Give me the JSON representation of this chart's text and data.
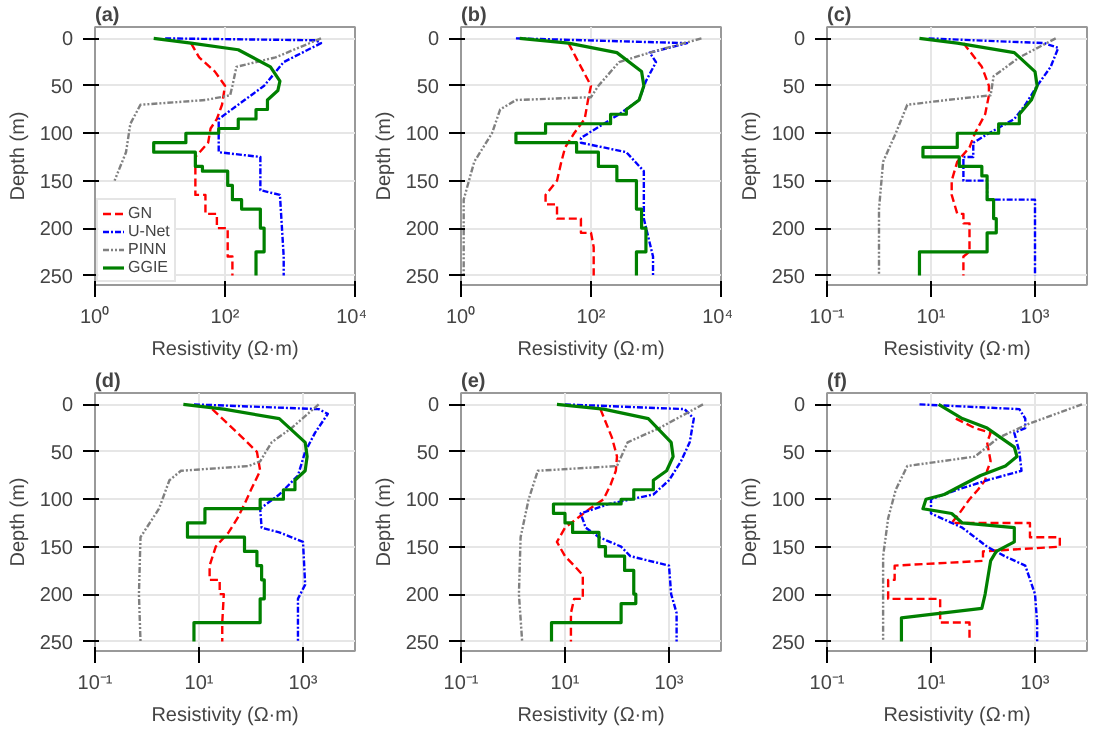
{
  "chart_data": [
    {
      "type": "line",
      "title": "(a)",
      "xlabel": "Resistivity (Ω·m)",
      "ylabel": "Depth (m)",
      "log": "x",
      "xlim": [
        1,
        10000
      ],
      "xticks": [
        {
          "value": 1,
          "label": "10⁰"
        },
        {
          "value": 100,
          "label": "10²"
        },
        {
          "value": 10000,
          "label": "10⁴"
        }
      ],
      "ylim": [
        260,
        -12
      ],
      "yticks": [
        0,
        50,
        100,
        150,
        200,
        250
      ],
      "grid": true,
      "legend": "bottom left",
      "series": [
        {
          "name": "GN",
          "color": "#ff0000",
          "line_style": "dashed",
          "x": [
            30,
            40,
            70,
            100,
            90,
            75,
            60,
            55,
            35,
            35,
            50,
            50,
            75,
            75,
            110,
            110,
            130,
            130
          ],
          "values": [
            5,
            20,
            35,
            50,
            70,
            85,
            95,
            110,
            125,
            165,
            165,
            185,
            185,
            200,
            200,
            230,
            230,
            250
          ]
        },
        {
          "name": "U-Net",
          "color": "#0000ff",
          "line_style": "dashdot",
          "x": [
            12,
            2500,
            3000,
            800,
            400,
            200,
            80,
            80,
            350,
            350,
            700,
            800,
            800
          ],
          "values": [
            0,
            2,
            5,
            25,
            50,
            65,
            85,
            120,
            125,
            160,
            165,
            230,
            250
          ]
        },
        {
          "name": "PINN",
          "color": "#808080",
          "line_style": "dashdotdot",
          "x": [
            3000,
            600,
            150,
            130,
            120,
            50,
            5,
            3.5,
            3,
            2
          ],
          "values": [
            0,
            20,
            30,
            50,
            60,
            65,
            70,
            90,
            120,
            150
          ]
        },
        {
          "name": "GGIE",
          "color": "#008000",
          "line_style": "solid",
          "x": [
            8,
            30,
            160,
            500,
            700,
            650,
            450,
            450,
            300,
            300,
            160,
            160,
            80,
            80,
            25,
            25,
            8,
            8,
            35,
            35,
            45,
            45,
            110,
            110,
            130,
            130,
            180,
            180,
            350,
            350,
            400,
            400,
            300,
            300
          ],
          "values": [
            0,
            5,
            12,
            30,
            45,
            55,
            65,
            75,
            75,
            85,
            85,
            95,
            95,
            100,
            100,
            110,
            110,
            120,
            120,
            135,
            135,
            140,
            140,
            155,
            155,
            170,
            170,
            180,
            180,
            200,
            200,
            225,
            225,
            250
          ]
        }
      ]
    },
    {
      "type": "line",
      "title": "(b)",
      "xlabel": "Resistivity (Ω·m)",
      "ylabel": "Depth (m)",
      "log": "x",
      "xlim": [
        1,
        10000
      ],
      "xticks": [
        {
          "value": 1,
          "label": "10⁰"
        },
        {
          "value": 100,
          "label": "10²"
        },
        {
          "value": 10000,
          "label": "10⁴"
        }
      ],
      "ylim": [
        260,
        -12
      ],
      "yticks": [
        0,
        50,
        100,
        150,
        200,
        250
      ],
      "grid": true,
      "series": [
        {
          "color": "#ff0000",
          "line_style": "dashed",
          "x": [
            45,
            70,
            100,
            90,
            80,
            55,
            40,
            35,
            30,
            20,
            20,
            30,
            30,
            70,
            70,
            100,
            110,
            110
          ],
          "values": [
            5,
            30,
            50,
            65,
            85,
            100,
            115,
            130,
            150,
            165,
            175,
            175,
            190,
            190,
            205,
            205,
            220,
            250
          ]
        },
        {
          "color": "#0000ff",
          "line_style": "dashdot",
          "x": [
            7,
            3000,
            800,
            1000,
            700,
            550,
            270,
            120,
            70,
            70,
            350,
            650,
            650,
            900,
            900
          ],
          "values": [
            0,
            5,
            15,
            25,
            45,
            65,
            80,
            95,
            105,
            110,
            120,
            140,
            190,
            230,
            250
          ]
        },
        {
          "color": "#808080",
          "line_style": "dashdotdot",
          "x": [
            5000,
            800,
            270,
            130,
            100,
            7,
            4,
            3,
            1.6,
            1.1,
            1.1
          ],
          "values": [
            0,
            15,
            25,
            50,
            62,
            65,
            75,
            100,
            130,
            170,
            250
          ]
        },
        {
          "color": "#008000",
          "line_style": "solid",
          "x": [
            8,
            45,
            250,
            600,
            650,
            550,
            350,
            350,
            200,
            200,
            20,
            20,
            7,
            7,
            60,
            60,
            130,
            130,
            250,
            250,
            500,
            500,
            600,
            600,
            700,
            700,
            500,
            500
          ],
          "values": [
            0,
            5,
            15,
            35,
            50,
            65,
            75,
            80,
            80,
            90,
            90,
            100,
            100,
            110,
            110,
            120,
            120,
            135,
            135,
            150,
            150,
            180,
            180,
            200,
            200,
            225,
            225,
            250
          ]
        }
      ]
    },
    {
      "type": "line",
      "title": "(c)",
      "xlabel": "Resistivity (Ω·m)",
      "ylabel": "Depth (m)",
      "log": "x",
      "xlim": [
        0.1,
        10000
      ],
      "xticks": [
        {
          "value": 0.1,
          "label": "10⁻¹"
        },
        {
          "value": 10,
          "label": "10¹"
        },
        {
          "value": 1000,
          "label": "10³"
        }
      ],
      "ylim": [
        260,
        -12
      ],
      "yticks": [
        0,
        50,
        100,
        150,
        200,
        250
      ],
      "grid": true,
      "series": [
        {
          "color": "#ff0000",
          "line_style": "dashed",
          "x": [
            42,
            95,
            130,
            130,
            110,
            70,
            55,
            32,
            25,
            25,
            32,
            42,
            42,
            55,
            55,
            42,
            42
          ],
          "values": [
            5,
            30,
            50,
            60,
            80,
            100,
            115,
            130,
            150,
            165,
            185,
            185,
            195,
            195,
            225,
            230,
            250
          ]
        },
        {
          "color": "#0000ff",
          "line_style": "dashdot",
          "x": [
            9,
            1500,
            2800,
            2000,
            1100,
            650,
            400,
            130,
            65,
            65,
            42,
            42,
            120,
            120,
            1000,
            1000
          ],
          "values": [
            0,
            5,
            10,
            30,
            50,
            70,
            85,
            100,
            110,
            125,
            125,
            150,
            150,
            170,
            170,
            250
          ]
        },
        {
          "color": "#808080",
          "line_style": "dashdotdot",
          "x": [
            2500,
            500,
            160,
            140,
            20,
            3.5,
            2.1,
            1.2,
            1,
            1
          ],
          "values": [
            0,
            20,
            40,
            60,
            65,
            70,
            100,
            130,
            180,
            250
          ]
        },
        {
          "color": "#008000",
          "line_style": "solid",
          "x": [
            6,
            32,
            400,
            1000,
            1100,
            850,
            500,
            500,
            200,
            200,
            32,
            32,
            7,
            7,
            35,
            35,
            95,
            95,
            120,
            120,
            160,
            160,
            180,
            180,
            120,
            120,
            6,
            6
          ],
          "values": [
            0,
            5,
            15,
            35,
            50,
            65,
            80,
            90,
            90,
            100,
            100,
            115,
            115,
            125,
            125,
            135,
            135,
            145,
            145,
            170,
            170,
            190,
            190,
            205,
            205,
            225,
            225,
            250
          ]
        }
      ]
    },
    {
      "type": "line",
      "title": "(d)",
      "xlabel": "Resistivity (Ω·m)",
      "ylabel": "Depth (m)",
      "log": "x",
      "xlim": [
        0.1,
        10000
      ],
      "xticks": [
        {
          "value": 0.1,
          "label": "10⁻¹"
        },
        {
          "value": 10,
          "label": "10¹"
        },
        {
          "value": 1000,
          "label": "10³"
        }
      ],
      "ylim": [
        260,
        -12
      ],
      "yticks": [
        0,
        50,
        100,
        150,
        200,
        250
      ],
      "grid": true,
      "series": [
        {
          "color": "#ff0000",
          "line_style": "dashed",
          "x": [
            18,
            55,
            130,
            150,
            100,
            75,
            55,
            37,
            21,
            16,
            16,
            25,
            25,
            30,
            28,
            28
          ],
          "values": [
            5,
            30,
            50,
            70,
            90,
            105,
            120,
            135,
            150,
            170,
            185,
            185,
            200,
            200,
            230,
            250
          ]
        },
        {
          "color": "#0000ff",
          "line_style": "dashdot",
          "x": [
            8,
            2000,
            3000,
            1700,
            1100,
            800,
            350,
            150,
            160,
            350,
            1000,
            1100,
            800,
            800
          ],
          "values": [
            0,
            5,
            10,
            30,
            50,
            75,
            95,
            110,
            130,
            135,
            145,
            190,
            205,
            250
          ]
        },
        {
          "color": "#808080",
          "line_style": "dashdotdot",
          "x": [
            2000,
            600,
            250,
            150,
            90,
            4.5,
            2.7,
            1.7,
            0.75,
            0.7,
            0.75
          ],
          "values": [
            0,
            25,
            40,
            60,
            65,
            70,
            80,
            110,
            140,
            200,
            250
          ]
        },
        {
          "color": "#008000",
          "line_style": "solid",
          "x": [
            5,
            30,
            350,
            1100,
            1200,
            1100,
            700,
            700,
            420,
            420,
            150,
            150,
            13,
            13,
            6,
            6,
            75,
            75,
            130,
            130,
            160,
            160,
            180,
            180,
            150,
            150,
            8,
            8
          ],
          "values": [
            0,
            5,
            15,
            40,
            55,
            70,
            80,
            90,
            90,
            100,
            100,
            110,
            110,
            125,
            125,
            140,
            140,
            155,
            155,
            170,
            170,
            185,
            185,
            205,
            205,
            230,
            230,
            250
          ]
        }
      ]
    },
    {
      "type": "line",
      "title": "(e)",
      "xlabel": "Resistivity (Ω·m)",
      "ylabel": "Depth (m)",
      "log": "x",
      "xlim": [
        0.1,
        10000
      ],
      "xticks": [
        {
          "value": 0.1,
          "label": "10⁻¹"
        },
        {
          "value": 10,
          "label": "10¹"
        },
        {
          "value": 1000,
          "label": "10³"
        }
      ],
      "ylim": [
        260,
        -12
      ],
      "yticks": [
        0,
        50,
        100,
        150,
        200,
        250
      ],
      "grid": true,
      "series": [
        {
          "color": "#ff0000",
          "line_style": "dashed",
          "x": [
            48,
            80,
            100,
            95,
            75,
            55,
            30,
            10,
            7,
            10,
            15,
            22,
            22,
            15,
            13,
            13
          ],
          "values": [
            5,
            35,
            55,
            70,
            85,
            100,
            110,
            130,
            145,
            160,
            170,
            180,
            205,
            205,
            220,
            250
          ]
        },
        {
          "color": "#0000ff",
          "line_style": "dashdot",
          "x": [
            10,
            2000,
            3000,
            2500,
            1700,
            1000,
            500,
            70,
            20,
            25,
            45,
            120,
            180,
            1000,
            1100,
            1400,
            1400
          ],
          "values": [
            0,
            5,
            15,
            40,
            60,
            80,
            95,
            105,
            115,
            130,
            140,
            150,
            160,
            170,
            200,
            220,
            250
          ]
        },
        {
          "color": "#808080",
          "line_style": "dashdotdot",
          "x": [
            4500,
            650,
            160,
            100,
            3,
            2,
            1.4,
            1.3,
            1.5
          ],
          "values": [
            0,
            25,
            40,
            65,
            70,
            100,
            140,
            200,
            250
          ]
        },
        {
          "color": "#008000",
          "line_style": "solid",
          "x": [
            7,
            55,
            400,
            1100,
            1200,
            900,
            500,
            500,
            210,
            210,
            120,
            120,
            6,
            6,
            10,
            10,
            14,
            14,
            45,
            45,
            60,
            60,
            140,
            140,
            210,
            210,
            230,
            230,
            120,
            120,
            5.5,
            5.5
          ],
          "values": [
            0,
            5,
            15,
            40,
            55,
            70,
            80,
            90,
            90,
            100,
            100,
            105,
            105,
            115,
            115,
            125,
            125,
            135,
            135,
            150,
            150,
            160,
            160,
            175,
            175,
            200,
            200,
            210,
            210,
            230,
            230,
            250
          ]
        }
      ]
    },
    {
      "type": "line",
      "title": "(f)",
      "xlabel": "Resistivity (Ω·m)",
      "ylabel": "Depth (m)",
      "log": "x",
      "xlim": [
        0.1,
        10000
      ],
      "xticks": [
        {
          "value": 0.1,
          "label": "10⁻¹"
        },
        {
          "value": 10,
          "label": "10¹"
        },
        {
          "value": 1000,
          "label": "10³"
        }
      ],
      "ylim": [
        260,
        -12
      ],
      "yticks": [
        0,
        50,
        100,
        150,
        200,
        250
      ],
      "grid": true,
      "series": [
        {
          "color": "#ff0000",
          "line_style": "dashed",
          "x": [
            30,
            70,
            140,
            120,
            140,
            120,
            110,
            80,
            55,
            35,
            25,
            25,
            800,
            800,
            3000,
            3000,
            100,
            100,
            2,
            2,
            1.5,
            1.5,
            15,
            15,
            55,
            55
          ],
          "values": [
            15,
            25,
            30,
            40,
            60,
            70,
            80,
            90,
            100,
            115,
            125,
            125,
            125,
            140,
            140,
            150,
            155,
            165,
            170,
            185,
            185,
            205,
            205,
            230,
            230,
            250
          ]
        },
        {
          "color": "#0000ff",
          "line_style": "dashdot",
          "x": [
            6,
            500,
            650,
            650,
            400,
            500,
            550,
            120,
            32,
            10,
            10,
            40,
            120,
            260,
            650,
            1000,
            1100,
            1100
          ],
          "values": [
            0,
            5,
            15,
            25,
            30,
            50,
            70,
            80,
            90,
            100,
            115,
            130,
            150,
            160,
            170,
            200,
            230,
            250
          ]
        },
        {
          "color": "#808080",
          "line_style": "dashdotdot",
          "x": [
            8000,
            800,
            200,
            70,
            3.5,
            2.1,
            1.5,
            1.2,
            1.2
          ],
          "values": [
            0,
            20,
            35,
            55,
            65,
            90,
            120,
            160,
            250
          ]
        },
        {
          "color": "#008000",
          "line_style": "solid",
          "x": [
            14,
            40,
            120,
            400,
            450,
            270,
            90,
            40,
            18,
            8,
            7,
            25,
            40,
            400,
            400,
            180,
            140,
            110,
            95,
            2.7,
            2.7
          ],
          "values": [
            0,
            15,
            25,
            45,
            55,
            65,
            75,
            85,
            95,
            100,
            110,
            115,
            125,
            130,
            145,
            155,
            165,
            200,
            215,
            225,
            250
          ]
        }
      ]
    }
  ]
}
